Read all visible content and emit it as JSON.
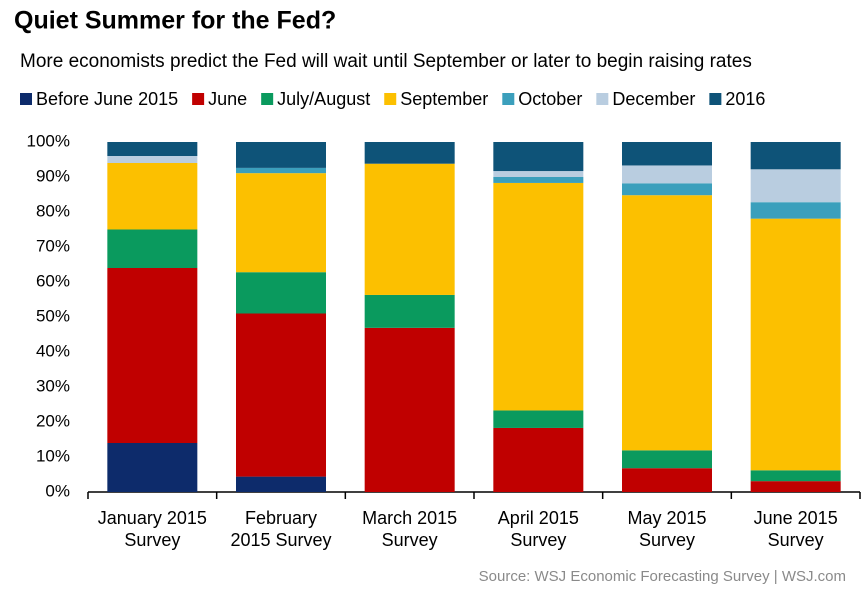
{
  "chart_data": {
    "type": "stacked-bar",
    "title": "Quiet Summer for the Fed?",
    "subtitle": "More economists predict the Fed will wait until September or later to begin raising rates",
    "source": "Source: WSJ Economic Forecasting Survey  |  WSJ.com",
    "categories": [
      [
        "January 2015",
        "Survey"
      ],
      [
        "February",
        "2015 Survey"
      ],
      [
        "March 2015",
        "Survey"
      ],
      [
        "April 2015",
        "Survey"
      ],
      [
        "May 2015",
        "Survey"
      ],
      [
        "June 2015",
        "Survey"
      ]
    ],
    "series": [
      {
        "name": "Before June 2015",
        "color": "#0d2b6b",
        "values": [
          14,
          4.4,
          0,
          0,
          0,
          0
        ]
      },
      {
        "name": "June",
        "color": "#c00000",
        "values": [
          50,
          46.6,
          46.9,
          18.3,
          6.8,
          3.1
        ]
      },
      {
        "name": "July/August",
        "color": "#0a9a5e",
        "values": [
          11,
          11.8,
          9.4,
          5,
          5.1,
          3.1
        ]
      },
      {
        "name": "September",
        "color": "#fcc000",
        "values": [
          19,
          28.3,
          37.5,
          65,
          72.9,
          71.9
        ]
      },
      {
        "name": "October",
        "color": "#3b9fbc",
        "values": [
          0,
          1.5,
          0,
          1.7,
          3.4,
          4.7
        ]
      },
      {
        "name": "December",
        "color": "#b9cde0",
        "values": [
          2,
          0,
          0,
          1.7,
          5.1,
          9.4
        ]
      },
      {
        "name": "2016",
        "color": "#0e5378",
        "values": [
          4,
          7.4,
          6.2,
          8.3,
          6.7,
          7.8
        ]
      }
    ],
    "ylim": [
      0,
      100
    ],
    "yticks": [
      {
        "value": 0,
        "label": "0%"
      },
      {
        "value": 10,
        "label": "10%"
      },
      {
        "value": 20,
        "label": "20%"
      },
      {
        "value": 30,
        "label": "30%"
      },
      {
        "value": 40,
        "label": "40%"
      },
      {
        "value": 50,
        "label": "50%"
      },
      {
        "value": 60,
        "label": "60%"
      },
      {
        "value": 70,
        "label": "70%"
      },
      {
        "value": 80,
        "label": "80%"
      },
      {
        "value": 90,
        "label": "90%"
      },
      {
        "value": 100,
        "label": "100%"
      }
    ]
  }
}
